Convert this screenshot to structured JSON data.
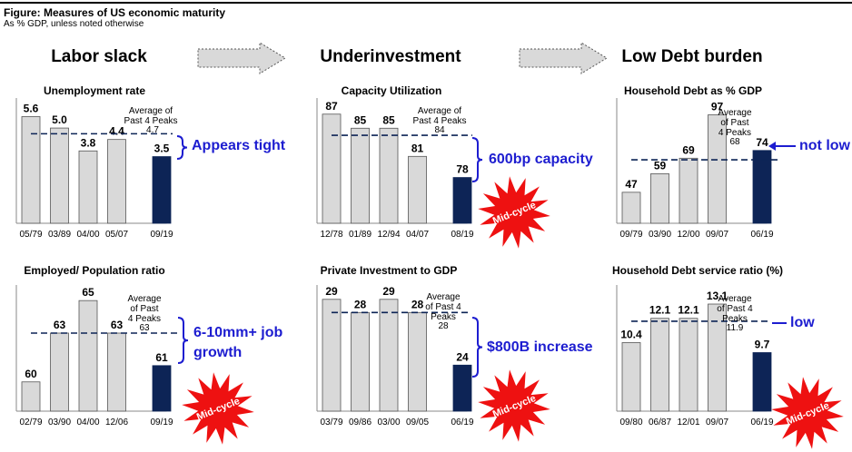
{
  "figure": {
    "title": "Figure: Measures of US economic maturity",
    "subtitle": "As % GDP, unless noted otherwise"
  },
  "columns": [
    "Labor slack",
    "Underinvestment",
    "Low Debt burden"
  ],
  "annotations": {
    "unemployment": "Appears tight",
    "capacity": "600bp capacity",
    "household_debt": "not low",
    "emp_pop_line1": "6-10mm+ job",
    "emp_pop_line2": "growth",
    "investment": "$800B increase",
    "debt_service": "low"
  },
  "badge_text": "Mid-cycle",
  "colors": {
    "past": "#d9d9d9",
    "current": "#0d2456",
    "annotation": "#1d1dd0",
    "badge": "#ee1111"
  },
  "chart_data": [
    {
      "type": "bar",
      "title": "Unemployment rate",
      "categories": [
        "05/79",
        "03/89",
        "04/00",
        "05/07",
        "09/19"
      ],
      "values": [
        5.6,
        5.0,
        3.8,
        4.4,
        3.5
      ],
      "labels": [
        "5.6",
        "5.0",
        "3.8",
        "4.4",
        "3.5"
      ],
      "ylim": [
        0,
        6.1
      ],
      "average": 4.7,
      "average_value_label": "4.7",
      "average_label": [
        "Average of",
        "Past 4 Peaks"
      ],
      "grid": false
    },
    {
      "type": "bar",
      "title": "Capacity Utilization",
      "categories": [
        "12/78",
        "01/89",
        "12/94",
        "04/07",
        "08/19"
      ],
      "values": [
        87,
        85,
        85,
        81,
        78
      ],
      "labels": [
        "87",
        "85",
        "85",
        "81",
        "78"
      ],
      "ylim": [
        71.5,
        88
      ],
      "average": 84,
      "average_value_label": "84",
      "average_label": [
        "Average of",
        "Past 4 Peaks"
      ],
      "grid": false
    },
    {
      "type": "bar",
      "title": "Household Debt as % GDP",
      "categories": [
        "09/79",
        "03/90",
        "12/00",
        "09/07",
        "06/19"
      ],
      "values": [
        47,
        59,
        69,
        97,
        74
      ],
      "labels": [
        "47",
        "59",
        "69",
        "97",
        "74"
      ],
      "ylim": [
        27,
        102
      ],
      "average": 68,
      "average_value_label": "68",
      "average_label": [
        "Average",
        "of Past",
        "4 Peaks"
      ],
      "grid": false
    },
    {
      "type": "bar",
      "title": "Employed/ Population ratio",
      "categories": [
        "02/79",
        "03/90",
        "04/00",
        "12/06",
        "09/19"
      ],
      "values": [
        60,
        63,
        65,
        63,
        61
      ],
      "labels": [
        "60",
        "63",
        "65",
        "63",
        "61"
      ],
      "ylim": [
        58.2,
        65.4
      ],
      "average": 63,
      "average_value_label": "63",
      "average_label": [
        "Average",
        "of Past",
        "4 Peaks"
      ],
      "grid": false
    },
    {
      "type": "bar",
      "title": "Private Investment to GDP",
      "categories": [
        "03/79",
        "09/86",
        "03/00",
        "09/05",
        "06/19"
      ],
      "values": [
        29,
        28,
        29,
        28,
        24
      ],
      "labels": [
        "29",
        "28",
        "29",
        "28",
        "24"
      ],
      "ylim": [
        20.5,
        29.4
      ],
      "average": 28,
      "average_value_label": "28",
      "average_label": [
        "Average",
        "of Past 4",
        "Peaks"
      ],
      "grid": false
    },
    {
      "type": "bar",
      "title": "Household Debt service ratio (%)",
      "categories": [
        "09/80",
        "06/87",
        "12/01",
        "09/07",
        "06/19"
      ],
      "values": [
        10.4,
        12.1,
        12.1,
        13.1,
        9.7
      ],
      "labels": [
        "10.4",
        "12.1",
        "12.1",
        "13.1",
        "9.7"
      ],
      "ylim": [
        5.6,
        13.8
      ],
      "average": 11.9,
      "average_value_label": "11.9",
      "average_label": [
        "Average",
        "of Past 4",
        "Peaks"
      ],
      "grid": false
    }
  ]
}
